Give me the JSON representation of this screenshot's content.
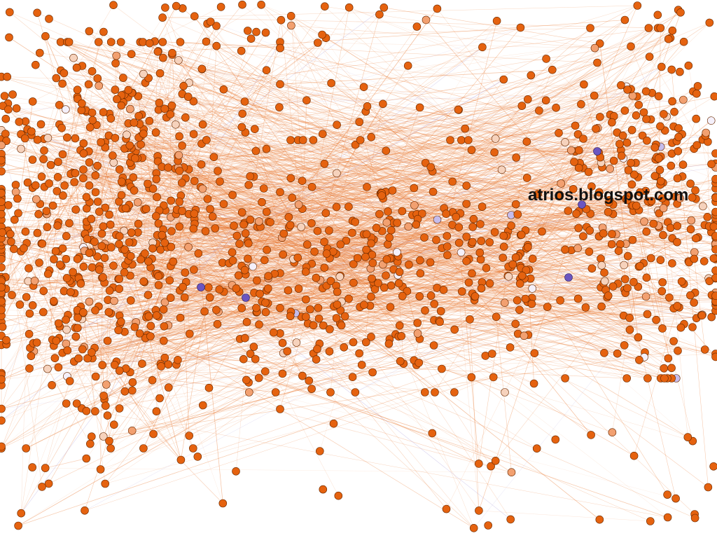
{
  "graph": {
    "highlight_label": "atrios.blogspot.com",
    "colors": {
      "background": "#ffffff",
      "edge": "#e8742a",
      "edge_purple": "#a89ad8",
      "node": "#e5620f",
      "node_stroke": "#6b2a00",
      "node_light": "#f2a070",
      "node_pale": "#f6d2bc",
      "node_white": "#f4f0fb",
      "node_lavender": "#c5bcec",
      "node_purple": "#6b55c0",
      "label": "#111111"
    }
  }
}
